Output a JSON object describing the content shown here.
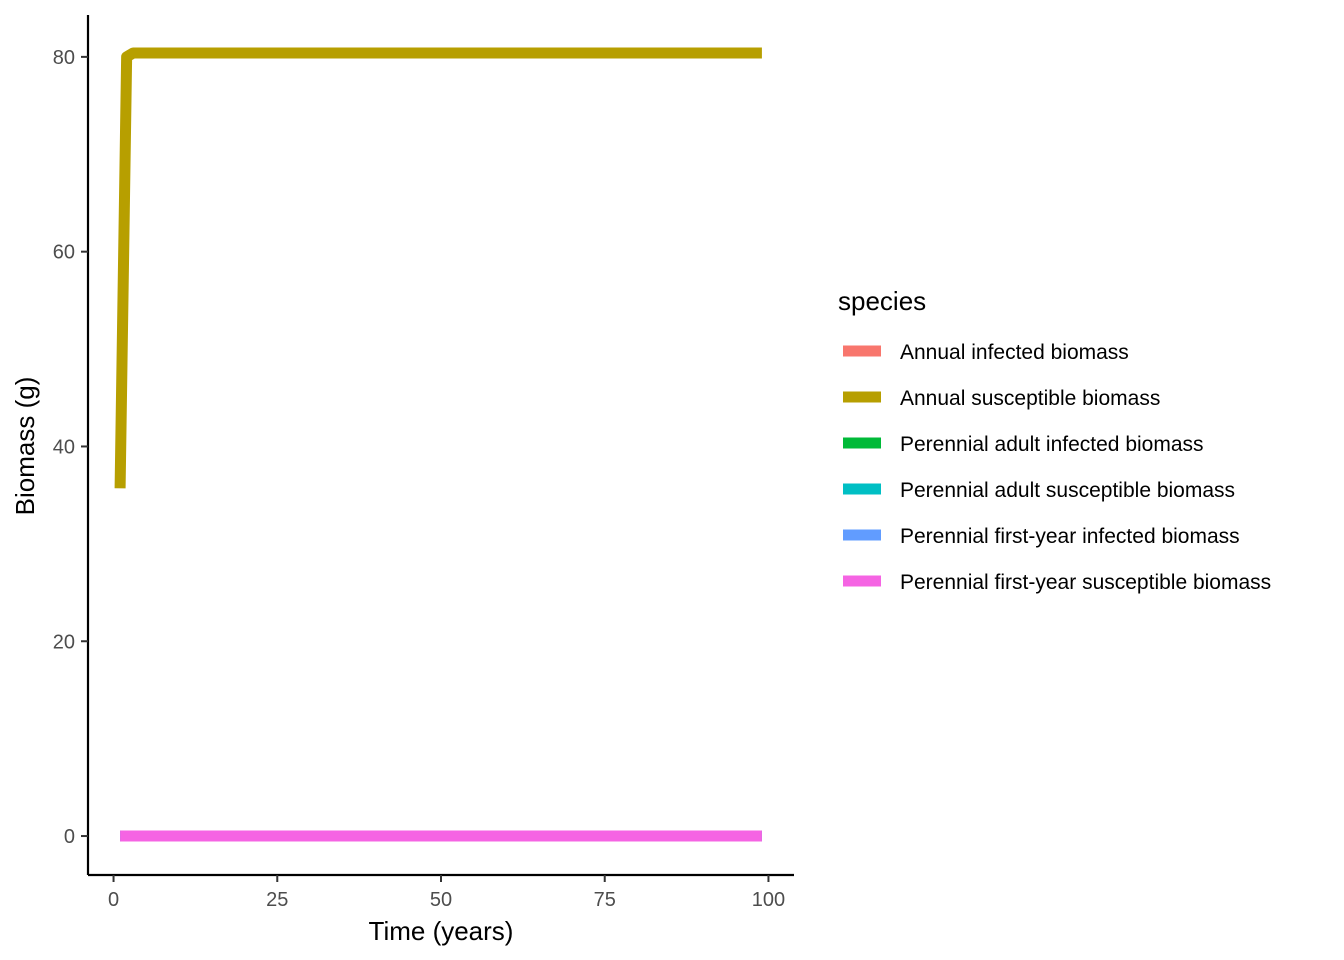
{
  "chart_data": {
    "type": "line",
    "title": "",
    "xlabel": "Time (years)",
    "ylabel": "Biomass (g)",
    "xlim": [
      -3.9,
      103.9
    ],
    "ylim": [
      -4.0,
      84.3
    ],
    "xticks": [
      0,
      25,
      50,
      75,
      100
    ],
    "yticks": [
      0,
      20,
      40,
      60,
      80
    ],
    "grid": false,
    "legend": {
      "title": "species",
      "position": "right"
    },
    "series": [
      {
        "name": "Annual infected biomass",
        "color": "#F8766D",
        "x": [
          1,
          2,
          3,
          99
        ],
        "y": [
          0,
          0,
          0,
          0
        ]
      },
      {
        "name": "Annual susceptible biomass",
        "color": "#B79F00",
        "x": [
          1,
          2,
          3,
          99
        ],
        "y": [
          35.7,
          80.0,
          80.4,
          80.4
        ]
      },
      {
        "name": "Perennial adult infected biomass",
        "color": "#00BA38",
        "x": [
          1,
          2,
          3,
          99
        ],
        "y": [
          0,
          0,
          0,
          0
        ]
      },
      {
        "name": "Perennial adult susceptible biomass",
        "color": "#00BFC4",
        "x": [
          1,
          2,
          3,
          99
        ],
        "y": [
          0,
          0,
          0,
          0
        ]
      },
      {
        "name": "Perennial first-year infected biomass",
        "color": "#619CFF",
        "x": [
          1,
          2,
          3,
          99
        ],
        "y": [
          0,
          0,
          0,
          0
        ]
      },
      {
        "name": "Perennial first-year susceptible biomass",
        "color": "#F564E3",
        "x": [
          1,
          2,
          3,
          99
        ],
        "y": [
          0,
          0,
          0,
          0
        ]
      }
    ]
  }
}
